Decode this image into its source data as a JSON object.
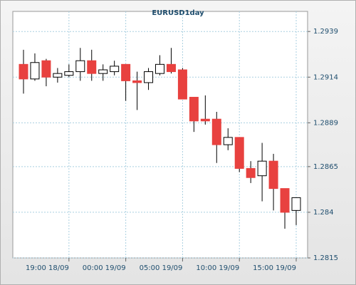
{
  "chart_data": {
    "type": "candlestick",
    "title": "EURUSD1day",
    "x": [
      "15:00 18/09",
      "16:00 18/09",
      "17:00 18/09",
      "18:00 18/09",
      "19:00 18/09",
      "20:00 18/09",
      "21:00 18/09",
      "22:00 18/09",
      "23:00 18/09",
      "00:00 19/09",
      "01:00 19/09",
      "02:00 19/09",
      "03:00 19/09",
      "04:00 19/09",
      "05:00 19/09",
      "06:00 19/09",
      "07:00 19/09",
      "08:00 19/09",
      "09:00 19/09",
      "10:00 19/09",
      "11:00 19/09",
      "12:00 19/09",
      "13:00 19/09",
      "14:00 19/09",
      "15:00 19/09"
    ],
    "open": [
      1.2921,
      1.2913,
      1.2923,
      1.2914,
      1.2915,
      1.2917,
      1.2923,
      1.2916,
      1.2917,
      1.2921,
      1.2912,
      1.2911,
      1.2916,
      1.2921,
      1.2918,
      1.2903,
      1.2891,
      1.2891,
      1.2877,
      1.2881,
      1.2864,
      1.286,
      1.2868,
      1.2853,
      1.2841
    ],
    "high": [
      1.2929,
      1.2927,
      1.2924,
      1.2919,
      1.2921,
      1.293,
      1.2929,
      1.2921,
      1.2923,
      1.2921,
      1.2917,
      1.2919,
      1.2926,
      1.293,
      1.2919,
      1.2903,
      1.2904,
      1.2895,
      1.2886,
      1.2881,
      1.2868,
      1.2878,
      1.2872,
      1.2853,
      1.2848
    ],
    "low": [
      1.2905,
      1.2912,
      1.2909,
      1.2911,
      1.2914,
      1.2912,
      1.2912,
      1.2912,
      1.2915,
      1.2901,
      1.2896,
      1.2907,
      1.2915,
      1.2916,
      1.2902,
      1.2884,
      1.2888,
      1.2867,
      1.2874,
      1.2862,
      1.2856,
      1.2846,
      1.2841,
      1.2831,
      1.2833
    ],
    "close": [
      1.2913,
      1.2922,
      1.2914,
      1.2916,
      1.2917,
      1.2923,
      1.2916,
      1.2918,
      1.292,
      1.2912,
      1.2911,
      1.2917,
      1.2921,
      1.2917,
      1.2902,
      1.289,
      1.289,
      1.2877,
      1.2881,
      1.2864,
      1.2859,
      1.2868,
      1.2853,
      1.284,
      1.2848
    ],
    "up_color": "#ffffff",
    "down_color": "#e8413f",
    "ylim": [
      1.2815,
      1.295
    ],
    "yticks": [
      1.2815,
      1.284,
      1.2865,
      1.2889,
      1.2914,
      1.2939
    ],
    "xticks": [
      "19:00 18/09",
      "00:00 19/09",
      "05:00 19/09",
      "10:00 19/09",
      "15:00 19/09"
    ],
    "grid": true
  }
}
